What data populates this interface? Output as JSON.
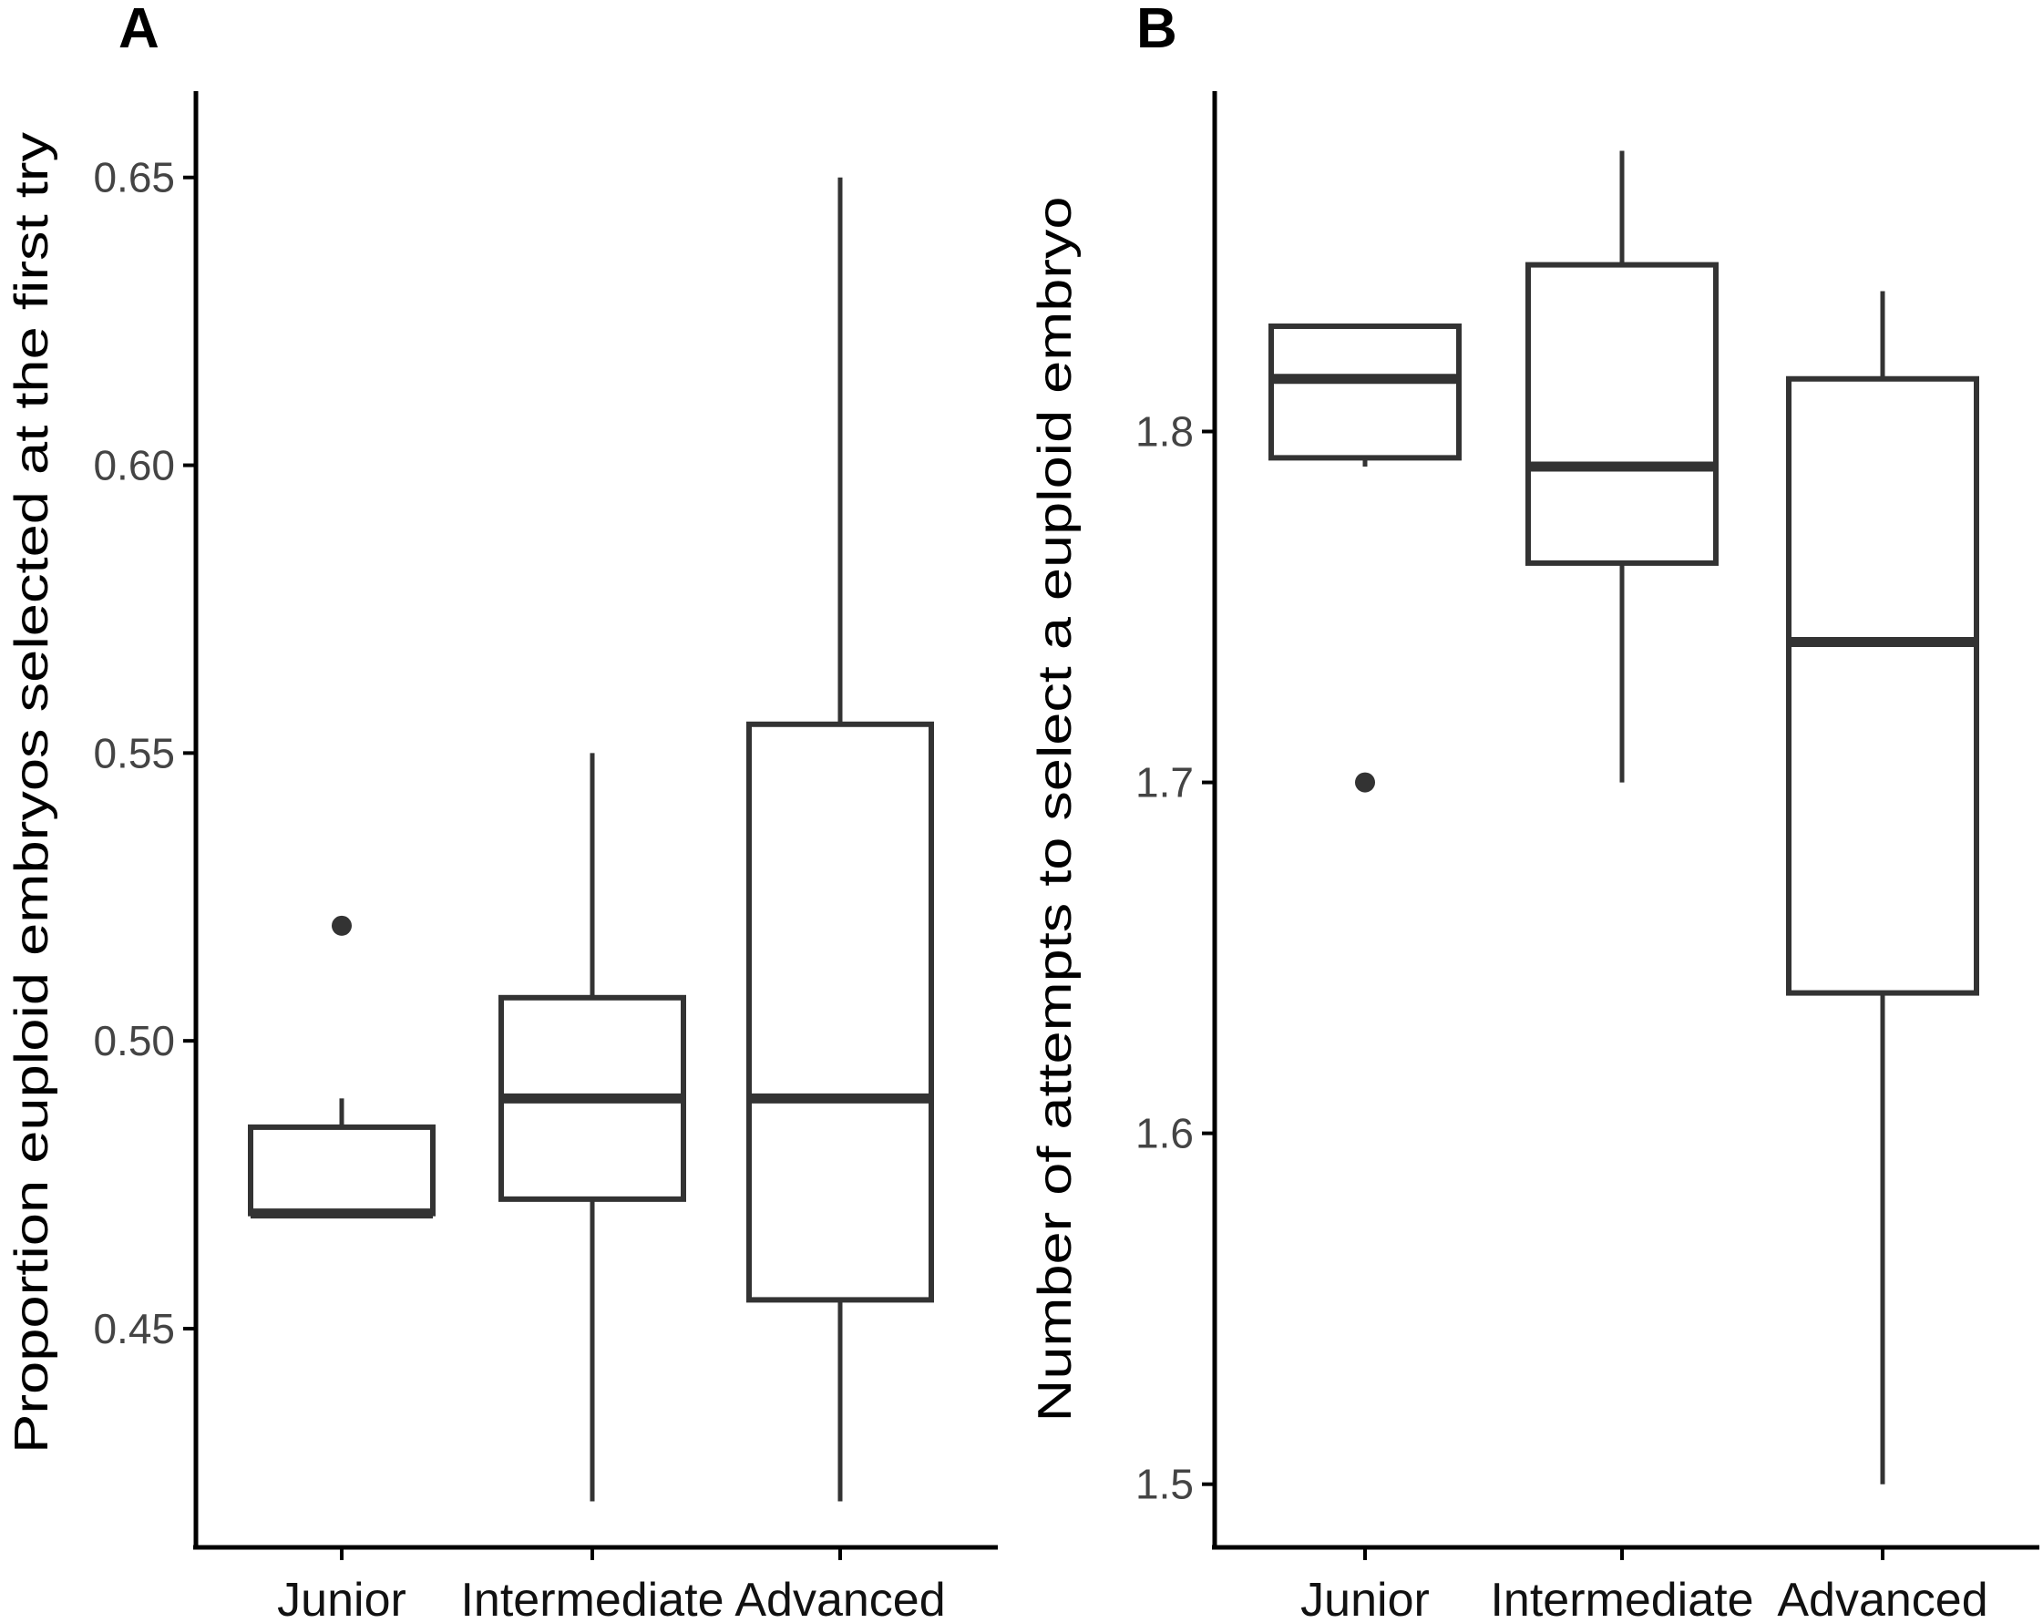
{
  "chart_data": [
    {
      "panel": "A",
      "type": "boxplot",
      "ylabel": "Proportion euploid embryos selected at the first try",
      "xlabel": "",
      "ylim": [
        0.412,
        0.665
      ],
      "yticks": [
        0.45,
        0.5,
        0.55,
        0.6,
        0.65
      ],
      "ytick_labels": [
        "0.45",
        "0.50",
        "0.55",
        "0.60",
        "0.65"
      ],
      "categories": [
        "Junior",
        "Intermediate",
        "Advanced"
      ],
      "boxes": [
        {
          "category": "Junior",
          "whisker_low": 0.47,
          "q1": 0.47,
          "median": 0.47,
          "q3": 0.485,
          "whisker_high": 0.49,
          "outliers": [
            0.52
          ]
        },
        {
          "category": "Intermediate",
          "whisker_low": 0.42,
          "q1": 0.4725,
          "median": 0.49,
          "q3": 0.5075,
          "whisker_high": 0.55,
          "outliers": []
        },
        {
          "category": "Advanced",
          "whisker_low": 0.42,
          "q1": 0.455,
          "median": 0.49,
          "q3": 0.555,
          "whisker_high": 0.65,
          "outliers": []
        }
      ]
    },
    {
      "panel": "B",
      "type": "boxplot",
      "ylabel": "Number of attempts to select a euploid embryo",
      "xlabel": "",
      "ylim": [
        1.482,
        1.897
      ],
      "yticks": [
        1.5,
        1.6,
        1.7,
        1.8
      ],
      "ytick_labels": [
        "1.5",
        "1.6",
        "1.7",
        "1.8"
      ],
      "categories": [
        "Junior",
        "Intermediate",
        "Advanced"
      ],
      "boxes": [
        {
          "category": "Junior",
          "whisker_low": 1.79,
          "q1": 1.7925,
          "median": 1.815,
          "q3": 1.83,
          "whisker_high": 1.83,
          "outliers": [
            1.7
          ]
        },
        {
          "category": "Intermediate",
          "whisker_low": 1.7,
          "q1": 1.7625,
          "median": 1.79,
          "q3": 1.8475,
          "whisker_high": 1.88,
          "outliers": []
        },
        {
          "category": "Advanced",
          "whisker_low": 1.5,
          "q1": 1.64,
          "median": 1.74,
          "q3": 1.815,
          "whisker_high": 1.84,
          "outliers": []
        }
      ]
    }
  ]
}
